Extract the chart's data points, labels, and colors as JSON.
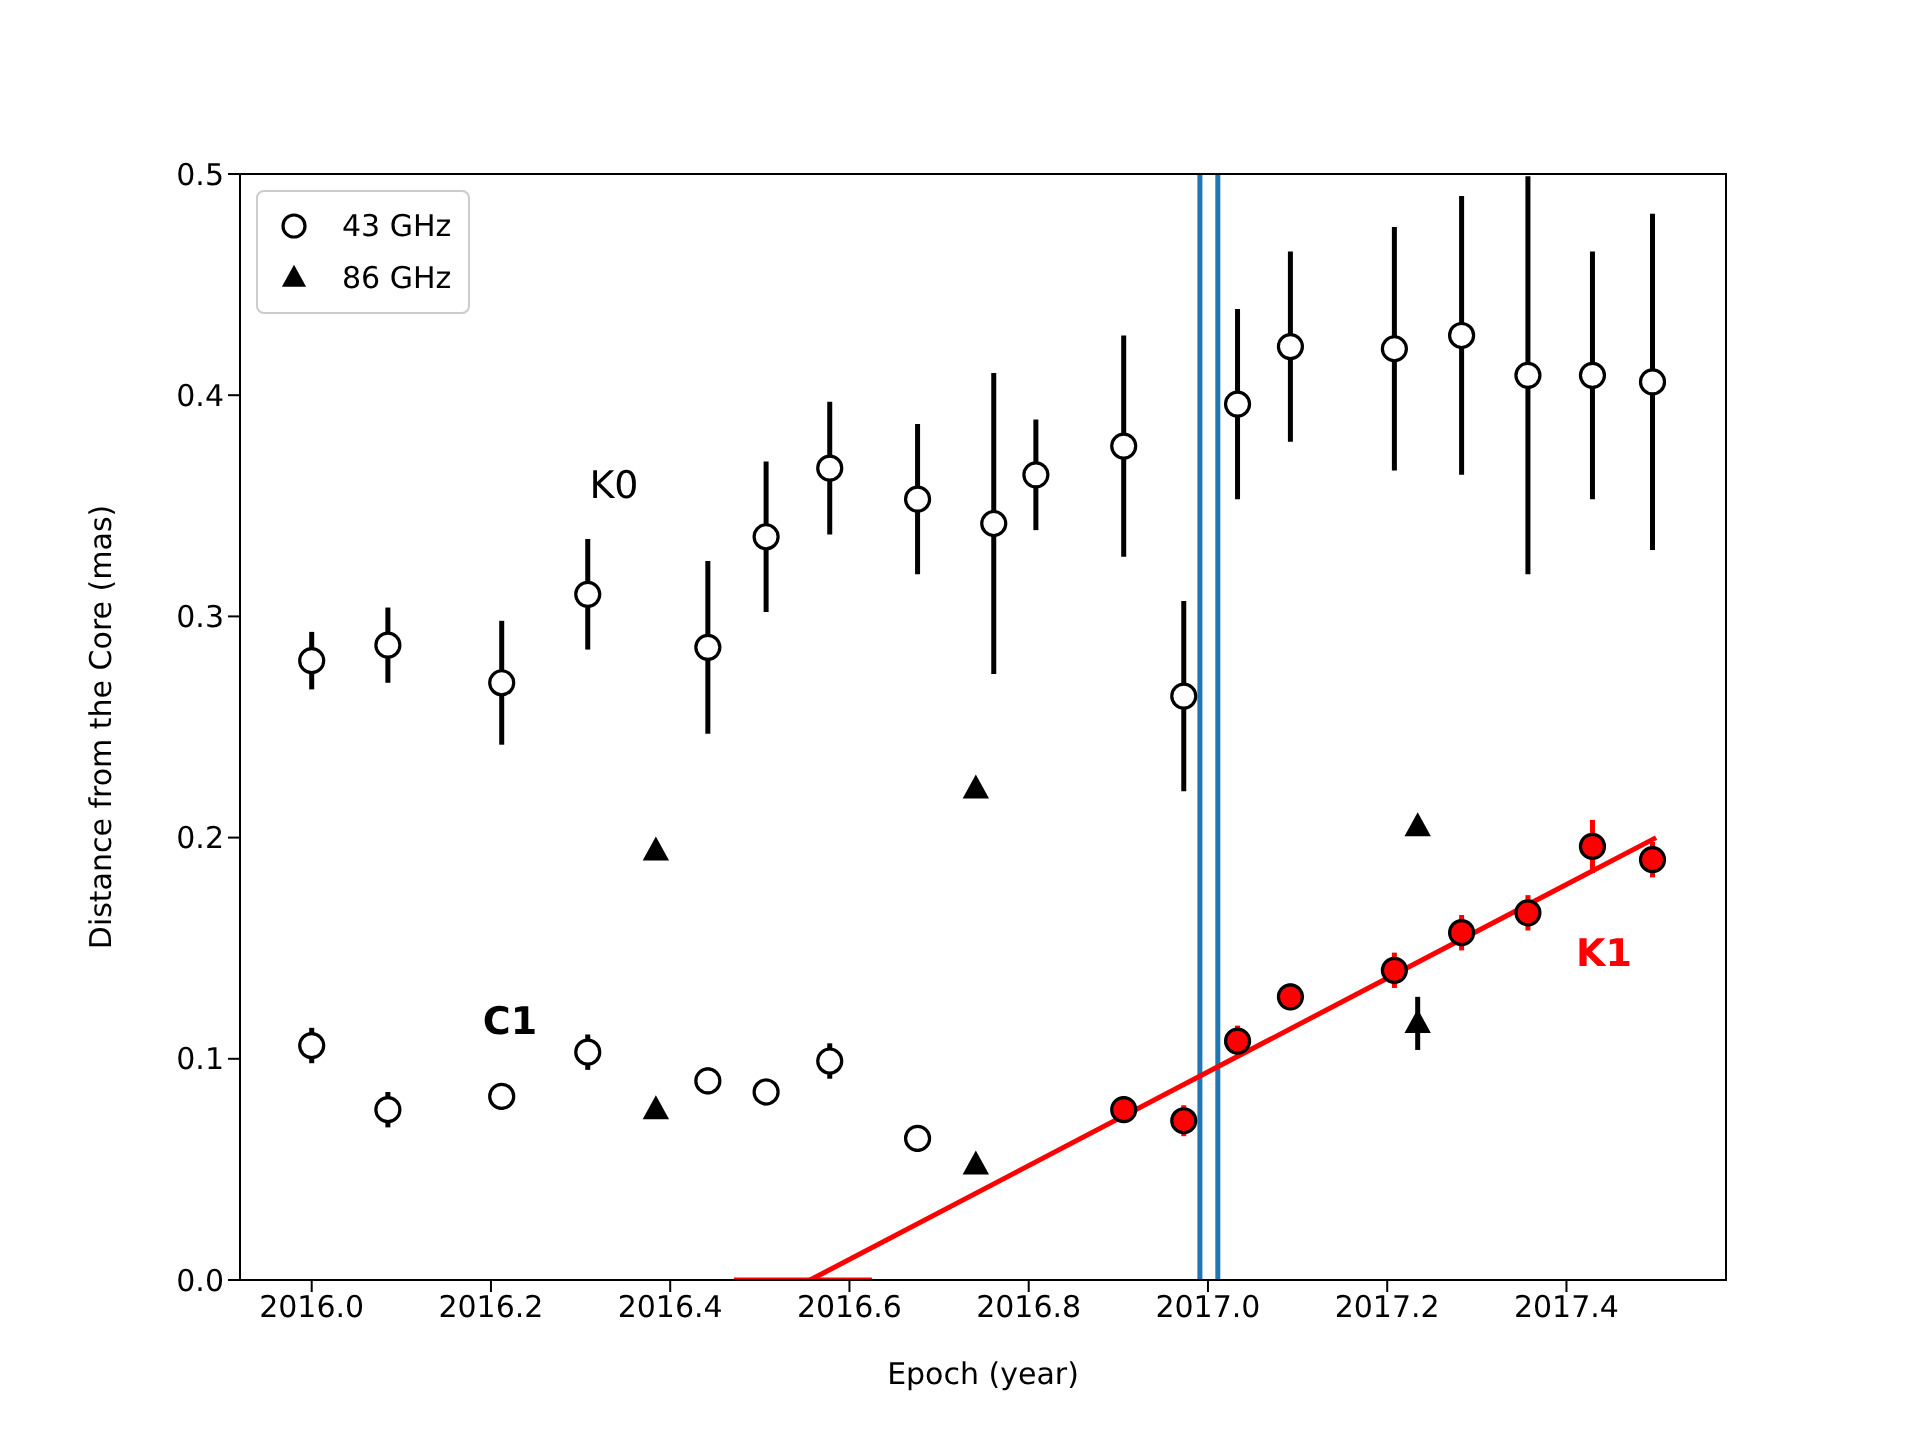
{
  "chart_data": {
    "type": "scatter",
    "xlabel": "Epoch (year)",
    "ylabel": "Distance from the Core (mas)",
    "xlim": [
      2015.92,
      2017.578
    ],
    "ylim": [
      0,
      0.5
    ],
    "xticks": [
      {
        "value": 2016.0,
        "label": "2016.0"
      },
      {
        "value": 2016.2,
        "label": "2016.2"
      },
      {
        "value": 2016.4,
        "label": "2016.4"
      },
      {
        "value": 2016.6,
        "label": "2016.6"
      },
      {
        "value": 2016.8,
        "label": "2016.8"
      },
      {
        "value": 2017.0,
        "label": "2017.0"
      },
      {
        "value": 2017.2,
        "label": "2017.2"
      },
      {
        "value": 2017.4,
        "label": "2017.4"
      }
    ],
    "yticks": [
      {
        "value": 0,
        "label": "0.0"
      },
      {
        "value": 0.1,
        "label": "0.1"
      },
      {
        "value": 0.2,
        "label": "0.2"
      },
      {
        "value": 0.3,
        "label": "0.3"
      },
      {
        "value": 0.4,
        "label": "0.4"
      },
      {
        "value": 0.5,
        "label": "0.5"
      }
    ],
    "grid": false,
    "legend": "top left",
    "series": [
      {
        "name": "43 GHz",
        "marker": "circle",
        "color": "#000000",
        "x": [
          2016.0,
          2016.085,
          2016.212,
          2016.308,
          2016.442,
          2016.507,
          2016.578,
          2016.676,
          2016.761,
          2016.808,
          2016.906,
          2016.973,
          2017.033,
          2017.092,
          2017.208,
          2017.283,
          2017.357,
          2017.429,
          2017.496
        ],
        "values": [
          0.28,
          0.287,
          0.27,
          0.31,
          0.286,
          0.336,
          0.367,
          0.353,
          0.342,
          0.364,
          0.377,
          0.264,
          0.396,
          0.422,
          0.421,
          0.427,
          0.409,
          0.409,
          0.406
        ],
        "errors": [
          0.013,
          0.017,
          0.028,
          0.025,
          0.039,
          0.034,
          0.03,
          0.034,
          0.068,
          0.025,
          0.05,
          0.043,
          0.043,
          0.043,
          0.055,
          0.063,
          0.09,
          0.056,
          0.076
        ]
      },
      {
        "marker": "circle",
        "color": "#000000",
        "x": [
          2016.0,
          2016.085,
          2016.212,
          2016.308,
          2016.442,
          2016.507,
          2016.578,
          2016.676
        ],
        "values": [
          0.106,
          0.077,
          0.083,
          0.103,
          0.09,
          0.085,
          0.099,
          0.064
        ],
        "errors": [
          0.008,
          0.008,
          0.006,
          0.008,
          0.006,
          0.006,
          0.008,
          0.006
        ]
      },
      {
        "name": "86 GHz",
        "marker": "triangle",
        "color": "#000000",
        "x": [
          2016.384,
          2016.384,
          2016.741,
          2016.741,
          2017.234,
          2017.234
        ],
        "values": [
          0.194,
          0.077,
          0.222,
          0.052,
          0.205,
          0.116
        ],
        "errors": [
          null,
          null,
          null,
          null,
          null,
          0.012
        ]
      },
      {
        "marker": "circle",
        "color": "#ff0000",
        "x": [
          2016.906,
          2016.973,
          2017.033,
          2017.092,
          2017.208,
          2017.283,
          2017.357,
          2017.429,
          2017.496
        ],
        "values": [
          0.077,
          0.072,
          0.108,
          0.128,
          0.14,
          0.157,
          0.166,
          0.196,
          0.19
        ],
        "errors": [
          0.006,
          0.007,
          0.007,
          0.006,
          0.008,
          0.008,
          0.008,
          0.012,
          0.008
        ]
      },
      {
        "type": "line",
        "marker": "none",
        "color": "#ff0000",
        "x": [
          2016.556,
          2017.5
        ],
        "values": [
          0,
          0.2
        ]
      },
      {
        "type": "line",
        "marker": "none",
        "color": "#ff0000",
        "x": [
          2016.471,
          2016.625
        ],
        "values": [
          0,
          0
        ]
      }
    ],
    "ref_lines": [
      {
        "axis": "x",
        "value": 2016.991,
        "color": "#1f77b4"
      },
      {
        "axis": "x",
        "value": 2017.011,
        "color": "#1f77b4"
      }
    ],
    "annotations": [
      "K0",
      "C1",
      "K1"
    ]
  }
}
